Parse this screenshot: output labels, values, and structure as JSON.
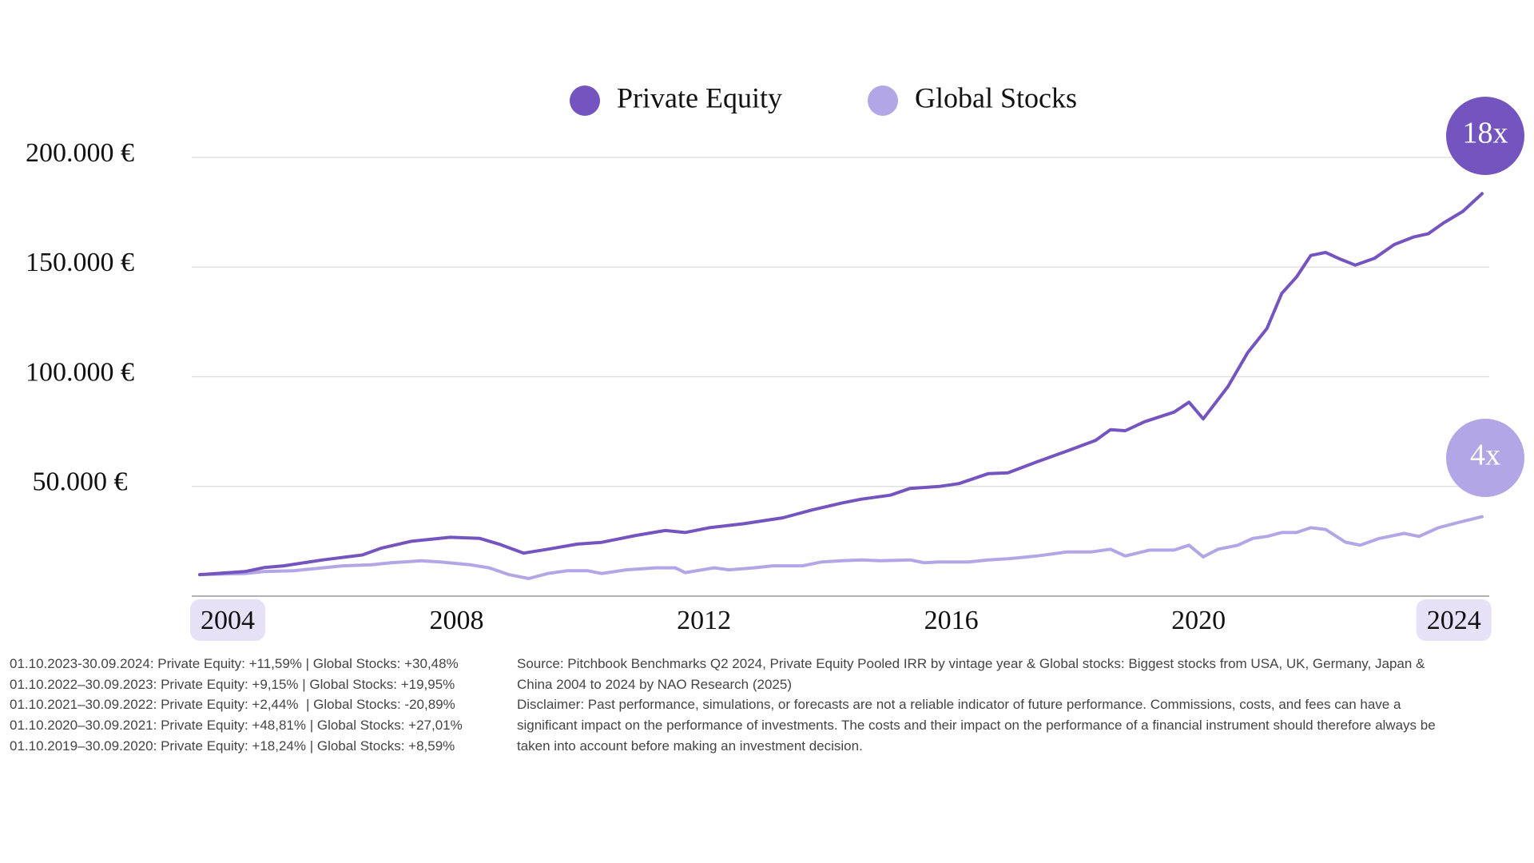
{
  "chart_data": {
    "type": "line",
    "series": [
      {
        "name": "Private Equity",
        "color": "#7455c0",
        "x": [
          2004,
          2004.73,
          2005.04,
          2005.36,
          2005.99,
          2006.63,
          2006.94,
          2007.42,
          2008.05,
          2008.53,
          2008.84,
          2009.24,
          2009.63,
          2010.11,
          2010.5,
          2011.06,
          2011.53,
          2011.85,
          2012.24,
          2012.8,
          2013.43,
          2013.91,
          2014.38,
          2014.7,
          2015.17,
          2015.49,
          2015.96,
          2016.28,
          2016.75,
          2017.07,
          2017.54,
          2018.02,
          2018.49,
          2018.73,
          2018.97,
          2019.28,
          2019.76,
          2020.0,
          2020.23,
          2020.63,
          2020.95,
          2021.26,
          2021.5,
          2021.74,
          2021.97,
          2022.21,
          2022.45,
          2022.69,
          2023.0,
          2023.32,
          2023.64,
          2023.87,
          2024.11,
          2024.43,
          2024.74
        ],
        "values": [
          9800,
          11200,
          13000,
          13800,
          16500,
          18750,
          21900,
          25000,
          26800,
          26300,
          23700,
          19600,
          21400,
          23700,
          24500,
          27700,
          29900,
          29000,
          31200,
          33000,
          35700,
          39300,
          42400,
          44200,
          46000,
          49100,
          50000,
          51300,
          55800,
          56200,
          61200,
          66100,
          71000,
          75900,
          75400,
          79500,
          83900,
          88400,
          80800,
          95500,
          111000,
          122000,
          138000,
          145500,
          155300,
          156700,
          153600,
          150900,
          154000,
          160300,
          163800,
          165200,
          170000,
          175400,
          183500
        ]
      },
      {
        "name": "Global Stocks",
        "color": "#b3a6e6",
        "x": [
          2004,
          2004.73,
          2005.04,
          2005.52,
          2005.99,
          2006.31,
          2006.78,
          2007.1,
          2007.58,
          2007.89,
          2008.37,
          2008.68,
          2009.0,
          2009.32,
          2009.63,
          2009.95,
          2010.27,
          2010.5,
          2010.9,
          2011.37,
          2011.69,
          2011.85,
          2012.32,
          2012.56,
          2012.96,
          2013.27,
          2013.75,
          2014.06,
          2014.38,
          2014.7,
          2015.01,
          2015.49,
          2015.72,
          2015.96,
          2016.44,
          2016.75,
          2017.07,
          2017.54,
          2018.02,
          2018.41,
          2018.73,
          2018.97,
          2019.36,
          2019.76,
          2020.0,
          2020.23,
          2020.47,
          2020.79,
          2021.03,
          2021.26,
          2021.5,
          2021.74,
          2021.97,
          2022.21,
          2022.53,
          2022.77,
          2023.08,
          2023.48,
          2023.72,
          2024.03,
          2024.35,
          2024.74
        ],
        "values": [
          9800,
          10300,
          11200,
          11600,
          12900,
          13800,
          14300,
          15200,
          16100,
          15600,
          14300,
          12900,
          9800,
          8000,
          10300,
          11600,
          11600,
          10300,
          12000,
          12900,
          12900,
          10700,
          12900,
          12000,
          12900,
          13800,
          13800,
          15600,
          16100,
          16500,
          16100,
          16500,
          15200,
          15600,
          15600,
          16500,
          17000,
          18300,
          20100,
          20100,
          21400,
          18300,
          21000,
          21000,
          23200,
          17900,
          21400,
          23200,
          26300,
          27200,
          29000,
          29000,
          31200,
          30400,
          24600,
          23200,
          26300,
          28600,
          27200,
          31200,
          33500,
          36200
        ]
      }
    ],
    "xlim": [
      2004,
      2024.74
    ],
    "xticks": [
      2004,
      2008,
      2012,
      2016,
      2020,
      2024
    ],
    "ylim": [
      0,
      200000
    ],
    "yticks": [
      {
        "value": 50000,
        "label": "50.000 €"
      },
      {
        "value": 100000,
        "label": "100.000 €"
      },
      {
        "value": 150000,
        "label": "150.000 €"
      },
      {
        "value": 200000,
        "label": "200.000 €"
      }
    ],
    "grid": true,
    "legend": "top",
    "annotations": [
      "18x",
      "4x"
    ],
    "footnotes": [
      "01.10.2023-30.09.2024: Private Equity: +11,59% | Global Stocks: +30,48%",
      "01.10.2022–30.09.2023: Private Equity: +9,15% | Global Stocks: +19,95%",
      "01.10.2021–30.09.2022: Private Equity: +2,44%  | Global Stocks: -20,89%",
      "01.10.2020–30.09.2021: Private Equity: +48,81% | Global Stocks: +27,01%",
      "01.10.2019–30.09.2020: Private Equity: +18,24% | Global Stocks: +8,59%"
    ],
    "source": "Source: Pitchbook Benchmarks Q2 2024, Private Equity Pooled IRR by vintage year & Global stocks: Biggest stocks from USA, UK, Germany, Japan & China 2004 to 2024 by NAO Research (2025)",
    "disclaimer": "Disclaimer: Past performance, simulations, or forecasts are not a reliable indicator of future performance. Commissions, costs, and fees can have a significant impact on the performance of investments. The costs and their impact on the performance of a financial instrument should therefore always be taken into account before making an investment decision."
  }
}
